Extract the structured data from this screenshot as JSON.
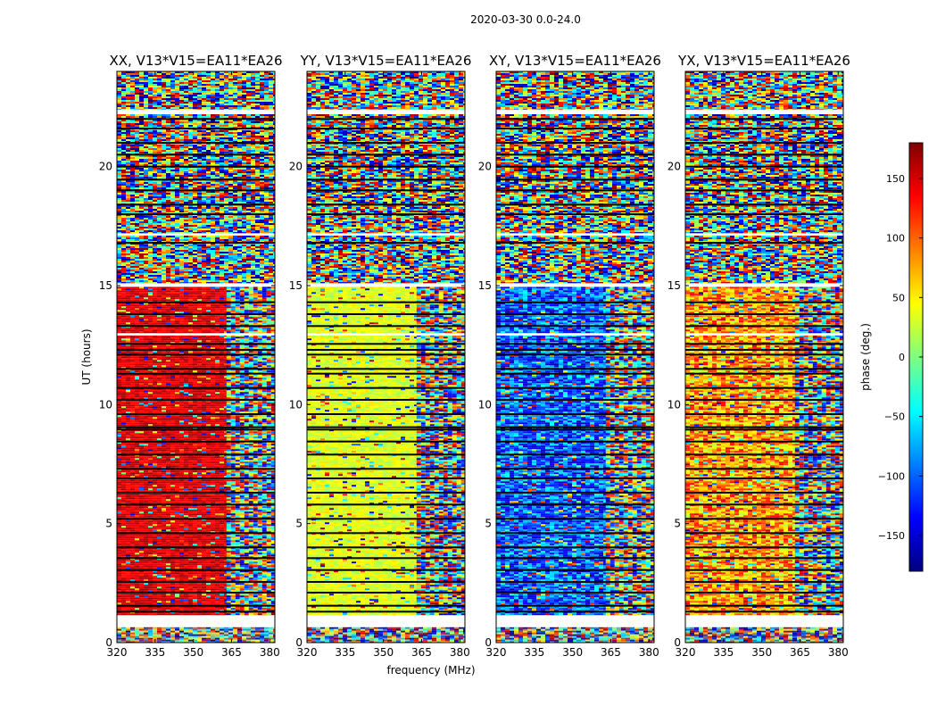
{
  "figure": {
    "suptitle": "2020-03-30 0.0-24.0"
  },
  "chart_data": {
    "type": "heatmap",
    "suptitle": "2020-03-30 0.0-24.0",
    "xlabel": "frequency (MHz)",
    "ylabel": "UT (hours)",
    "xlim": [
      320,
      382
    ],
    "ylim": [
      0,
      24
    ],
    "xticks": [
      320,
      335,
      350,
      365,
      380
    ],
    "yticks": [
      0,
      5,
      10,
      15,
      20
    ],
    "colorbar": {
      "label": "phase (deg.)",
      "range": [
        -180,
        180
      ],
      "ticks": [
        150,
        100,
        50,
        0,
        -50,
        -100,
        -150
      ],
      "tick_labels": [
        "150",
        "100",
        "50",
        "0",
        "−50",
        "−100",
        "−150"
      ],
      "colormap": "jet",
      "colors": [
        "#00007f",
        "#0000ff",
        "#007fff",
        "#00ffff",
        "#7fff7f",
        "#ffff00",
        "#ff7f00",
        "#ff0000",
        "#7f0000"
      ]
    },
    "blank_bands_ut": [
      [
        0.65,
        1.15
      ],
      [
        14.95,
        15.1
      ],
      [
        22.2,
        22.4
      ],
      [
        12.9,
        13.0
      ],
      [
        17.1,
        17.2
      ]
    ],
    "dark_lines_ut": [
      1.3,
      1.55,
      2.1,
      2.55,
      3.05,
      3.55,
      4.0,
      4.6,
      5.2,
      5.8,
      6.3,
      6.9,
      7.3,
      7.9,
      8.45,
      8.95,
      9.05,
      9.6,
      10.2,
      10.7,
      11.3,
      11.5,
      12.1,
      12.3,
      12.55,
      13.3,
      13.8,
      14.3,
      16.8,
      18.0,
      18.4,
      19.0,
      19.45,
      20.0,
      20.5,
      21.0,
      21.6,
      22.0
    ],
    "panels": [
      {
        "title": "XX, V13*V15=EA11*EA26",
        "regions": [
          {
            "ut": [
              0,
              0.65
            ],
            "freq": [
              320,
              382
            ],
            "phase": null,
            "note": "noisy"
          },
          {
            "ut": [
              1.15,
              14.95
            ],
            "freq": [
              320,
              363
            ],
            "phase": 150,
            "note": "coherent red"
          },
          {
            "ut": [
              1.15,
              14.95
            ],
            "freq": [
              363,
              382
            ],
            "phase": null,
            "note": "noisy / blue fringes"
          },
          {
            "ut": [
              15.1,
              24
            ],
            "freq": [
              320,
              382
            ],
            "phase": null,
            "note": "noisy with fringes"
          }
        ]
      },
      {
        "title": "YY, V13*V15=EA11*EA26",
        "regions": [
          {
            "ut": [
              0,
              0.65
            ],
            "freq": [
              320,
              382
            ],
            "phase": null,
            "note": "noisy"
          },
          {
            "ut": [
              1.15,
              14.95
            ],
            "freq": [
              320,
              363
            ],
            "phase": 35,
            "note": "coherent yellow-green"
          },
          {
            "ut": [
              1.15,
              14.95
            ],
            "freq": [
              363,
              382
            ],
            "phase": null,
            "note": "noisy"
          },
          {
            "ut": [
              15.1,
              24
            ],
            "freq": [
              320,
              382
            ],
            "phase": null,
            "note": "noisy with fringes"
          }
        ]
      },
      {
        "title": "XY, V13*V15=EA11*EA26",
        "regions": [
          {
            "ut": [
              0,
              0.65
            ],
            "freq": [
              320,
              382
            ],
            "phase": null,
            "note": "noisy"
          },
          {
            "ut": [
              1.15,
              14.95
            ],
            "freq": [
              320,
              363
            ],
            "phase": -105,
            "note": "mostly blue, noisy"
          },
          {
            "ut": [
              1.15,
              14.95
            ],
            "freq": [
              363,
              382
            ],
            "phase": null,
            "note": "noisy"
          },
          {
            "ut": [
              15.1,
              24
            ],
            "freq": [
              320,
              382
            ],
            "phase": null,
            "note": "noisy with fringes"
          }
        ]
      },
      {
        "title": "YX, V13*V15=EA11*EA26",
        "regions": [
          {
            "ut": [
              0,
              0.65
            ],
            "freq": [
              320,
              382
            ],
            "phase": null,
            "note": "noisy"
          },
          {
            "ut": [
              1.15,
              14.95
            ],
            "freq": [
              320,
              363
            ],
            "phase": 80,
            "note": "mostly orange, noisy"
          },
          {
            "ut": [
              1.15,
              14.95
            ],
            "freq": [
              363,
              382
            ],
            "phase": null,
            "note": "noisy"
          },
          {
            "ut": [
              15.1,
              24
            ],
            "freq": [
              320,
              382
            ],
            "phase": null,
            "note": "noisy with fringes"
          }
        ]
      }
    ]
  }
}
